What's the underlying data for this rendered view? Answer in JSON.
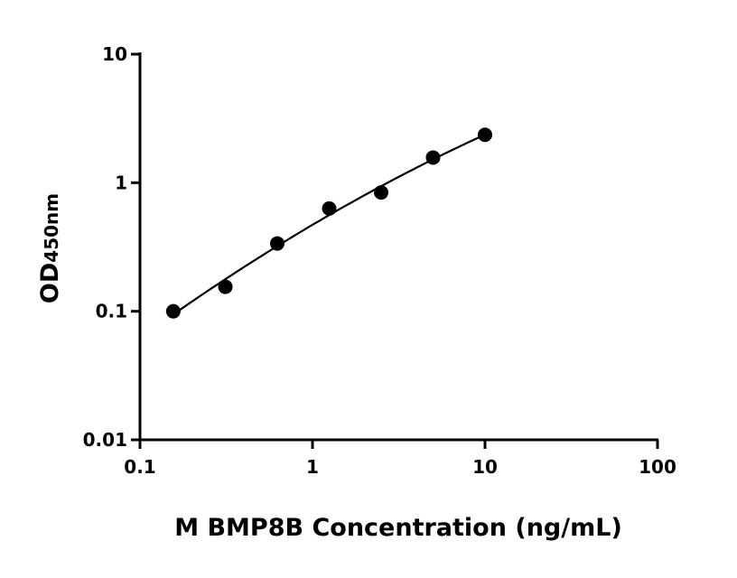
{
  "chart_data": {
    "type": "scatter",
    "title": "",
    "xlabel": "M BMP8B Concentration (ng/mL)",
    "ylabel_main": "OD",
    "ylabel_sub": "450nm",
    "x_scale": "log",
    "y_scale": "log",
    "xlim": [
      0.1,
      100
    ],
    "ylim": [
      0.01,
      10
    ],
    "x_ticks": [
      "0.1",
      "1",
      "10",
      "100"
    ],
    "y_ticks": [
      "0.01",
      "0.1",
      "1",
      "10"
    ],
    "grid": false,
    "legend": "none",
    "fit_line": true,
    "marker_color": "#000000",
    "x": [
      0.156,
      0.3125,
      0.625,
      1.25,
      2.5,
      5,
      10
    ],
    "y": [
      0.1,
      0.155,
      0.337,
      0.63,
      0.84,
      1.57,
      2.36
    ]
  }
}
